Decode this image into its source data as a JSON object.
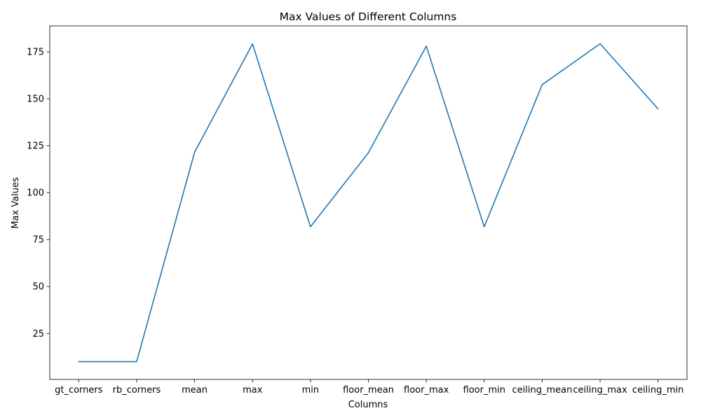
{
  "chart_data": {
    "type": "line",
    "title": "Max Values of Different Columns",
    "xlabel": "Columns",
    "ylabel": "Max Values",
    "categories": [
      "gt_corners",
      "rb_corners",
      "mean",
      "max",
      "min",
      "floor_mean",
      "floor_max",
      "floor_min",
      "ceiling_mean",
      "ceiling_max",
      "ceiling_min"
    ],
    "series": [
      {
        "values": [
          10.0,
          10.0,
          121.5,
          179.2,
          81.8,
          121.2,
          178.0,
          81.8,
          157.5,
          179.3,
          144.6
        ],
        "color": "#1f77b4"
      }
    ],
    "yticks": [
      25,
      50,
      75,
      100,
      125,
      150,
      175
    ],
    "ylim": [
      0.5,
      188.8
    ],
    "grid": false,
    "legend": "none"
  }
}
